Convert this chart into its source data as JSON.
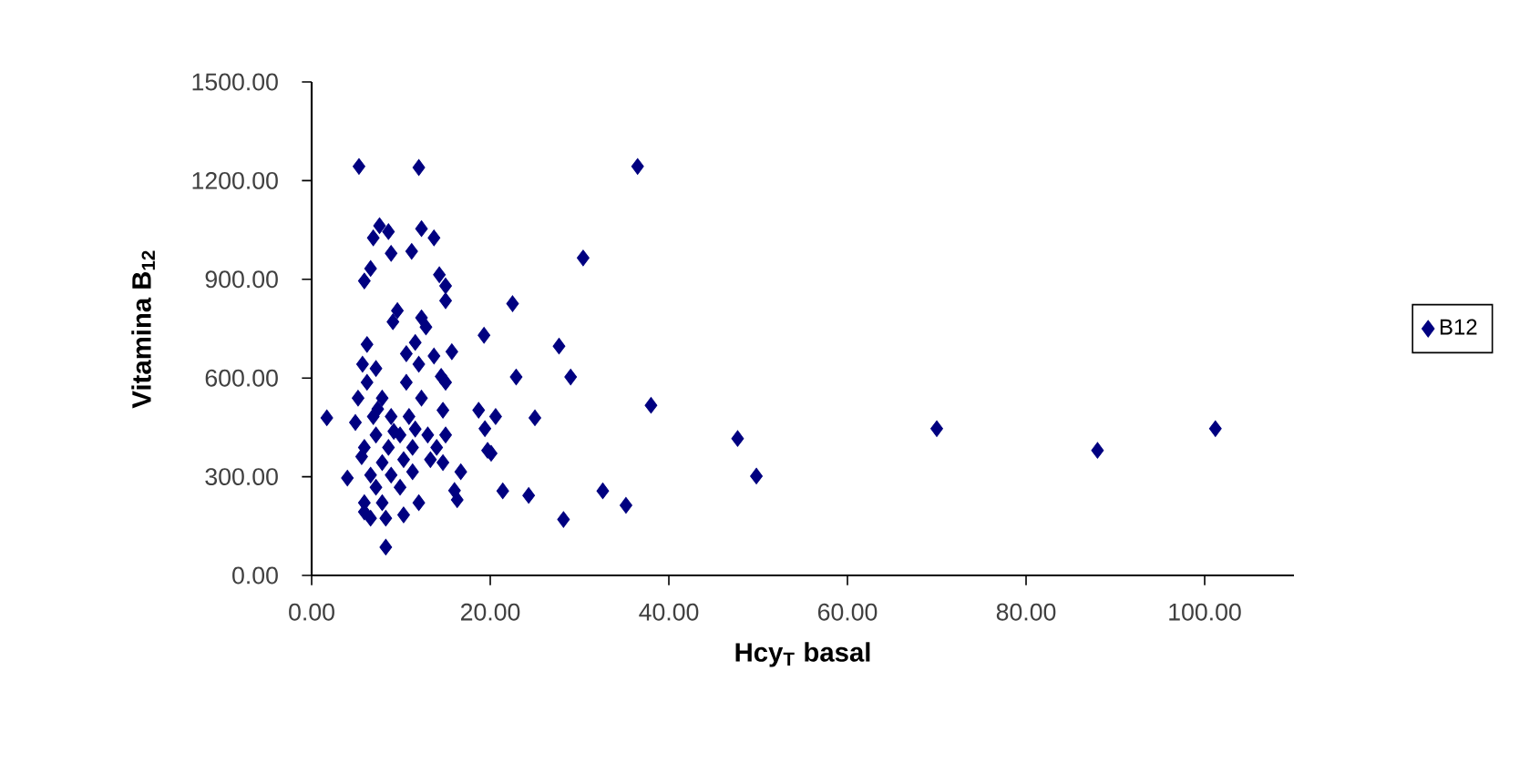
{
  "chart_data": {
    "type": "scatter",
    "xlabel": "Hcy$_{T}$ basal",
    "ylabel": "Vitamina B$_{12}$",
    "xlim": [
      0,
      110
    ],
    "ylim": [
      0,
      1500
    ],
    "xticks": [
      {
        "value": 0,
        "label": "0.00"
      },
      {
        "value": 20,
        "label": "20.00"
      },
      {
        "value": 40,
        "label": "40.00"
      },
      {
        "value": 60,
        "label": "60.00"
      },
      {
        "value": 80,
        "label": "80.00"
      },
      {
        "value": 100,
        "label": "100.00"
      }
    ],
    "yticks": [
      {
        "value": 0,
        "label": "0.00"
      },
      {
        "value": 300,
        "label": "300.00"
      },
      {
        "value": 600,
        "label": "600.00"
      },
      {
        "value": 900,
        "label": "900.00"
      },
      {
        "value": 1200,
        "label": "1200.00"
      },
      {
        "value": 1500,
        "label": "1500.00"
      }
    ],
    "grid": false,
    "legend": "right",
    "marker": "diamond",
    "series": [
      {
        "name": "B12",
        "color": "#000080",
        "x": [
          36.5,
          30.4,
          22.5,
          27.7,
          22.9,
          29.0,
          20.6,
          25.0,
          38.0,
          20.1,
          21.4,
          24.3,
          28.2,
          32.6,
          35.2,
          47.7,
          49.8,
          70.0,
          88.0,
          101.2,
          5.3,
          12.0,
          7.6,
          6.9,
          8.6,
          12.3,
          13.7,
          8.9,
          11.2,
          6.6,
          5.9,
          14.3,
          15.0,
          15.0,
          9.6,
          9.1,
          12.3,
          12.8,
          19.3,
          11.6,
          6.2,
          10.6,
          13.7,
          15.7,
          5.7,
          7.2,
          12.0,
          14.5,
          6.2,
          10.6,
          15.0,
          1.7,
          5.2,
          7.9,
          12.3,
          14.7,
          4.9,
          6.9,
          8.9,
          10.9,
          7.2,
          9.9,
          13.0,
          15.0,
          5.9,
          8.6,
          11.3,
          14.0,
          18.7,
          19.4,
          19.7,
          5.6,
          7.9,
          10.3,
          13.3,
          6.6,
          8.9,
          11.3,
          14.7,
          16.7,
          4.0,
          7.2,
          9.9,
          16.0,
          16.3,
          5.9,
          7.9,
          12.0,
          5.9,
          8.3,
          10.3,
          6.6,
          8.3,
          9.2,
          7.4,
          11.6
        ],
        "values": [
          1243,
          965,
          826,
          697,
          603,
          603,
          483,
          479,
          517,
          371,
          257,
          243,
          170,
          257,
          213,
          416,
          302,
          446,
          380,
          446,
          1243,
          1240,
          1063,
          1026,
          1045,
          1054,
          1026,
          979,
          985,
          933,
          895,
          914,
          880,
          835,
          805,
          771,
          783,
          755,
          730,
          708,
          702,
          674,
          667,
          680,
          642,
          629,
          642,
          605,
          587,
          587,
          587,
          479,
          539,
          539,
          539,
          502,
          465,
          483,
          483,
          483,
          427,
          427,
          427,
          427,
          389,
          389,
          389,
          389,
          502,
          446,
          380,
          361,
          343,
          352,
          352,
          305,
          305,
          315,
          343,
          315,
          296,
          268,
          268,
          258,
          230,
          221,
          221,
          221,
          193,
          174,
          184,
          174,
          86,
          438,
          506,
          445
        ]
      }
    ]
  }
}
